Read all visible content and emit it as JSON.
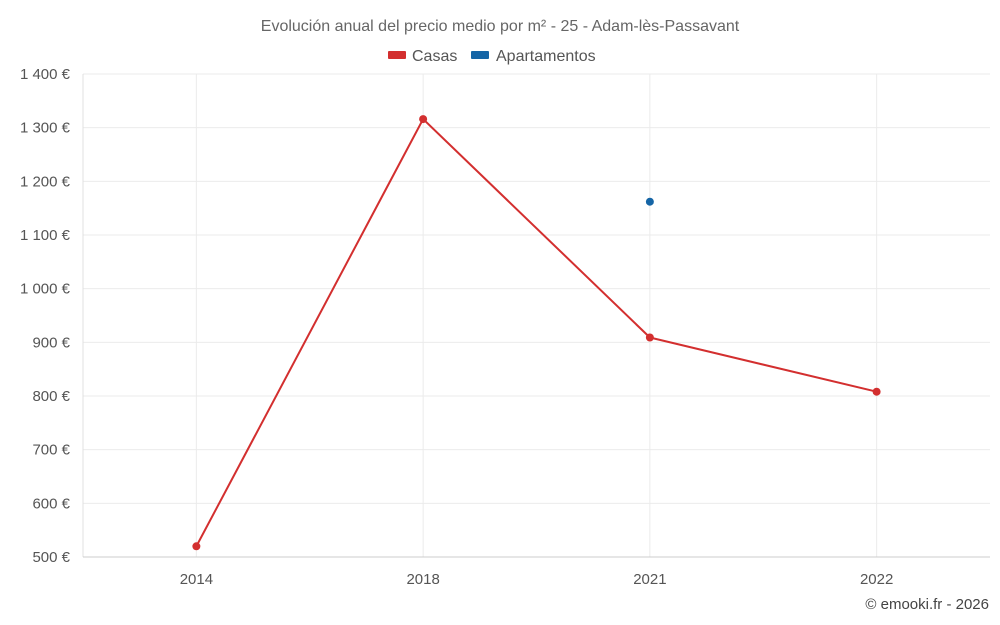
{
  "chart_data": {
    "type": "line",
    "title": "Evolución anual del precio medio por m² - 25 - Adam-lès-Passavant",
    "categories": [
      "2014",
      "2018",
      "2021",
      "2022"
    ],
    "series": [
      {
        "name": "Casas",
        "color": "#d32f2f",
        "values": [
          520,
          1316,
          909,
          808
        ]
      },
      {
        "name": "Apartamentos",
        "color": "#1565a6",
        "values": [
          null,
          null,
          1162,
          null
        ]
      }
    ],
    "ylim": [
      500,
      1400
    ],
    "yticks": [
      500,
      600,
      700,
      800,
      900,
      1000,
      1100,
      1200,
      1300,
      1400
    ],
    "ytick_labels": [
      "500 €",
      "600 €",
      "700 €",
      "800 €",
      "900 €",
      "1 000 €",
      "1 100 €",
      "1 200 €",
      "1 300 €",
      "1 400 €"
    ],
    "xlabel": "",
    "ylabel": "",
    "grid": true,
    "legend_position": "top-center"
  },
  "credit": "© emooki.fr - 2026"
}
